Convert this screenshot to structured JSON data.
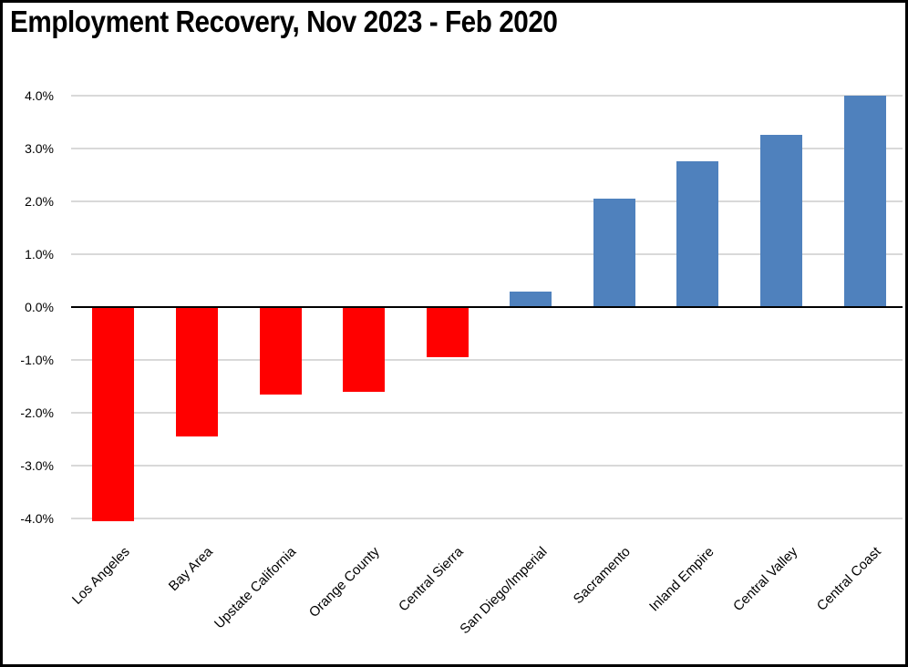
{
  "title": "Employment Recovery, Nov 2023 - Feb 2020",
  "chart_data": {
    "type": "bar",
    "title": "Employment Recovery, Nov 2023 - Feb 2020",
    "xlabel": "",
    "ylabel": "",
    "categories": [
      "Los Angeles",
      "Bay Area",
      "Upstate California",
      "Orange County",
      "Central Sierra",
      "San Diego/Imperial",
      "Sacramento",
      "Inland Empire",
      "Central Valley",
      "Central Coast"
    ],
    "values": [
      -4.05,
      -2.45,
      -1.65,
      -1.6,
      -0.95,
      0.3,
      2.05,
      2.75,
      3.25,
      4.0
    ],
    "unit": "%",
    "ylim": [
      -4.0,
      4.0
    ],
    "y_tick_values": [
      4,
      3,
      2,
      1,
      0,
      -1,
      -2,
      -3,
      -4
    ],
    "y_tick_labels": [
      "4.0%",
      "3.0%",
      "2.0%",
      "1.0%",
      "0.0%",
      "-1.0%",
      "-2.0%",
      "-3.0%",
      "-4.0%"
    ],
    "grid": true,
    "legend": "none",
    "colors": {
      "positive_bar": "#4F81BD",
      "negative_bar": "#FF0000",
      "gridline": "#D9D9D9",
      "axis": "#000000",
      "background": "#FFFFFF",
      "border": "#000000",
      "text": "#000000"
    }
  }
}
